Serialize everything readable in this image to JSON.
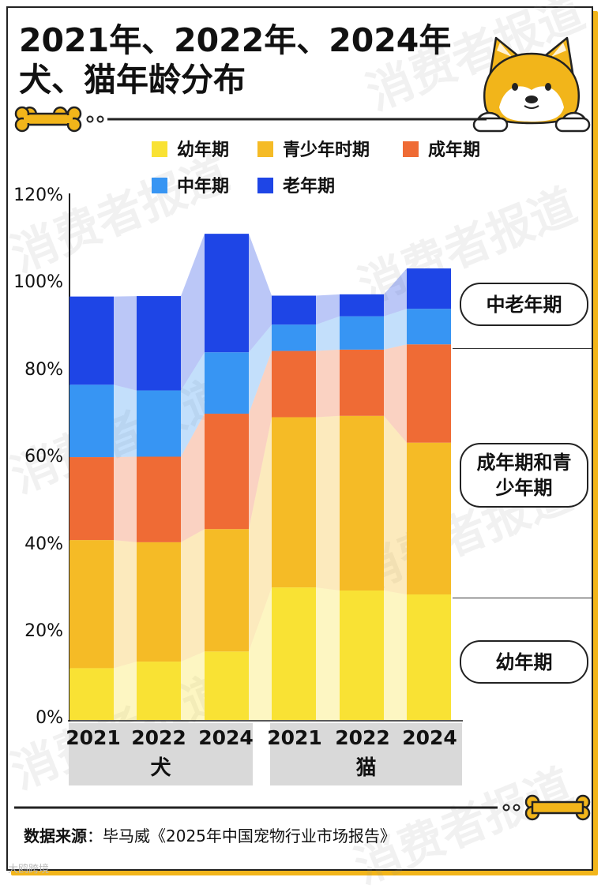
{
  "title": {
    "line1": "2021年、2022年、2024年",
    "line2": "犬、猫年龄分布"
  },
  "watermark_text": "消费者报道",
  "colors": {
    "youth": "#f9e234",
    "adolescent": "#f5bb26",
    "adult": "#ef6b35",
    "middle": "#3795f3",
    "senior": "#1e45e6",
    "accent": "#f2b51a"
  },
  "chart_data": {
    "type": "bar",
    "stacked": true,
    "title": "2021年、2022年、2024年 犬、猫年龄分布",
    "xlabel": "",
    "ylabel": "",
    "ylim": [
      0,
      120
    ],
    "yticks": [
      "0%",
      "20%",
      "40%",
      "60%",
      "80%",
      "100%",
      "120%"
    ],
    "groups": [
      {
        "name": "犬",
        "categories": [
          "2021",
          "2022",
          "2024"
        ]
      },
      {
        "name": "猫",
        "categories": [
          "2021",
          "2022",
          "2024"
        ]
      }
    ],
    "categories": [
      "2021",
      "2022",
      "2024",
      "2021",
      "2022",
      "2024"
    ],
    "series": [
      {
        "name": "幼年期",
        "color": "#f9e234",
        "values": [
          11.8,
          13.3,
          15.6,
          30.2,
          29.5,
          28.6
        ]
      },
      {
        "name": "青少年时期",
        "color": "#f5bb26",
        "values": [
          29.2,
          27.2,
          27.9,
          38.8,
          39.8,
          34.6
        ]
      },
      {
        "name": "成年期",
        "color": "#ef6b35",
        "values": [
          18.9,
          19.5,
          26.3,
          15.1,
          15.1,
          22.4
        ]
      },
      {
        "name": "中年期",
        "color": "#3795f3",
        "values": [
          16.5,
          15.1,
          14.0,
          6.0,
          7.6,
          8.1
        ]
      },
      {
        "name": "老年期",
        "color": "#1e45e6",
        "values": [
          20.1,
          21.5,
          27.0,
          6.6,
          5.0,
          9.2
        ]
      }
    ],
    "bracket_labels": [
      "中老年期",
      "成年期和青少年期",
      "幼年期"
    ],
    "bracket_lines": [
      "中老年期",
      "成年期和青",
      "少年期",
      "幼年期"
    ]
  },
  "legend": [
    {
      "label": "幼年期",
      "color": "#f9e234"
    },
    {
      "label": "青少年时期",
      "color": "#f5bb26"
    },
    {
      "label": "成年期",
      "color": "#ef6b35"
    },
    {
      "label": "中年期",
      "color": "#3795f3"
    },
    {
      "label": "老年期",
      "color": "#1e45e6"
    }
  ],
  "source": {
    "label": "数据来源",
    "text": "：毕马威《2025年中国宠物行业市场报告》"
  },
  "footer_mark": "大鸥跨境"
}
